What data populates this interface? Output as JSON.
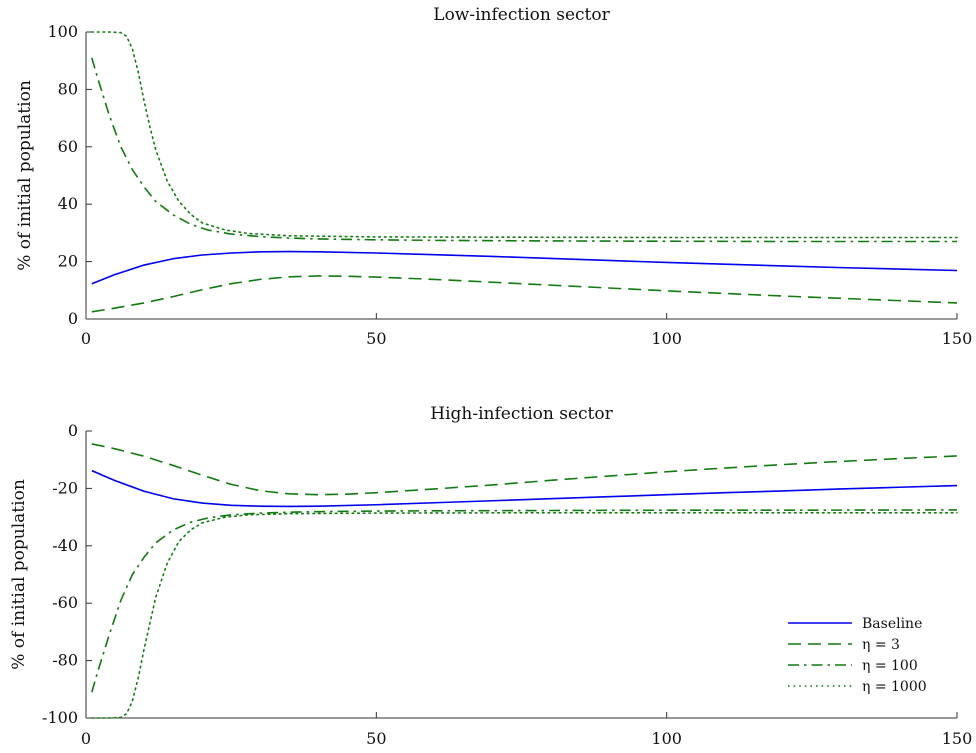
{
  "chart_data": [
    {
      "type": "line",
      "title": "Low-infection sector",
      "xlabel": "",
      "ylabel": "% of initial population",
      "xlim": [
        0,
        150
      ],
      "ylim": [
        0,
        100
      ],
      "xticks": [
        "0",
        "50",
        "100",
        "150"
      ],
      "yticks": [
        "0",
        "20",
        "40",
        "60",
        "80",
        "100"
      ],
      "grid": false,
      "series": [
        {
          "name": "Baseline",
          "color": "#0000ee",
          "dash": "solid",
          "x": [
            1,
            5,
            10,
            15,
            20,
            25,
            30,
            35,
            40,
            50,
            60,
            70,
            80,
            90,
            100,
            110,
            120,
            130,
            140,
            150
          ],
          "y": [
            12.3,
            15.5,
            18.8,
            21.0,
            22.3,
            23.0,
            23.4,
            23.5,
            23.4,
            23.0,
            22.4,
            21.8,
            21.1,
            20.4,
            19.7,
            19.1,
            18.5,
            17.9,
            17.4,
            16.9
          ]
        },
        {
          "name": "η = 3",
          "color": "#117a11",
          "dash": "dash",
          "x": [
            1,
            5,
            10,
            15,
            20,
            25,
            30,
            35,
            40,
            45,
            50,
            60,
            70,
            80,
            90,
            100,
            110,
            120,
            130,
            140,
            150
          ],
          "y": [
            2.5,
            3.8,
            5.6,
            7.8,
            10.2,
            12.3,
            13.8,
            14.7,
            15.0,
            14.9,
            14.6,
            13.8,
            12.8,
            11.8,
            10.8,
            9.8,
            8.9,
            8.0,
            7.2,
            6.4,
            5.6
          ]
        },
        {
          "name": "η = 100",
          "color": "#117a11",
          "dash": "dashdot",
          "x": [
            1,
            2,
            4,
            6,
            8,
            10,
            12,
            15,
            18,
            21,
            25,
            30,
            35,
            40,
            50,
            60,
            80,
            100,
            120,
            150
          ],
          "y": [
            91,
            84,
            71,
            60,
            52,
            46,
            41,
            36.3,
            33.0,
            31.0,
            29.6,
            28.7,
            28.2,
            27.9,
            27.6,
            27.4,
            27.2,
            27.1,
            27.0,
            27.0
          ]
        },
        {
          "name": "η = 1000",
          "color": "#117a11",
          "dash": "dot",
          "x": [
            1,
            4,
            6,
            7,
            8,
            9,
            10,
            11,
            12,
            14,
            16,
            18,
            20,
            24,
            28,
            35,
            50,
            75,
            100,
            150
          ],
          "y": [
            100,
            100,
            99.8,
            98.5,
            94,
            86,
            76,
            67,
            59,
            48,
            41,
            36.5,
            33.5,
            31,
            29.8,
            29.0,
            28.6,
            28.5,
            28.4,
            28.4
          ]
        }
      ]
    },
    {
      "type": "line",
      "title": "High-infection sector",
      "xlabel": "",
      "ylabel": "% of initial population",
      "xlim": [
        0,
        150
      ],
      "ylim": [
        -100,
        0
      ],
      "xticks": [
        "0",
        "50",
        "100",
        "150"
      ],
      "yticks": [
        "-100",
        "-80",
        "-60",
        "-40",
        "-20",
        "0"
      ],
      "grid": false,
      "legend": {
        "location": "bottom-right",
        "entries": [
          "Baseline",
          "η = 3",
          "η = 100",
          "η = 1000"
        ]
      },
      "series": [
        {
          "name": "Baseline",
          "color": "#0000ee",
          "dash": "solid",
          "x": [
            1,
            5,
            10,
            15,
            20,
            25,
            30,
            35,
            40,
            50,
            60,
            70,
            80,
            90,
            100,
            110,
            120,
            130,
            140,
            150
          ],
          "y": [
            -13.8,
            -17.3,
            -21.0,
            -23.6,
            -25.1,
            -25.9,
            -26.2,
            -26.3,
            -26.2,
            -25.7,
            -25.0,
            -24.3,
            -23.6,
            -22.9,
            -22.2,
            -21.5,
            -20.9,
            -20.2,
            -19.6,
            -19.0
          ]
        },
        {
          "name": "η = 3",
          "color": "#117a11",
          "dash": "dash",
          "x": [
            1,
            5,
            10,
            15,
            20,
            25,
            30,
            35,
            40,
            45,
            50,
            60,
            70,
            80,
            90,
            100,
            110,
            120,
            130,
            140,
            150
          ],
          "y": [
            -4.5,
            -6.2,
            -8.8,
            -12.0,
            -15.4,
            -18.6,
            -20.8,
            -21.9,
            -22.2,
            -22.0,
            -21.5,
            -20.2,
            -18.8,
            -17.2,
            -15.7,
            -14.2,
            -12.9,
            -11.7,
            -10.6,
            -9.6,
            -8.7
          ]
        },
        {
          "name": "η = 100",
          "color": "#117a11",
          "dash": "dashdot",
          "x": [
            1,
            2,
            4,
            6,
            8,
            10,
            12,
            15,
            18,
            21,
            25,
            30,
            35,
            40,
            50,
            60,
            80,
            100,
            120,
            150
          ],
          "y": [
            -91,
            -84,
            -71,
            -59,
            -50,
            -44,
            -39,
            -34.5,
            -31.8,
            -30.3,
            -29.2,
            -28.6,
            -28.3,
            -28.1,
            -27.9,
            -27.8,
            -27.7,
            -27.6,
            -27.6,
            -27.5
          ]
        },
        {
          "name": "η = 1000",
          "color": "#117a11",
          "dash": "dot",
          "x": [
            1,
            4,
            6,
            7,
            8,
            9,
            10,
            11,
            12,
            14,
            16,
            18,
            20,
            24,
            28,
            35,
            50,
            75,
            100,
            150
          ],
          "y": [
            -100,
            -100,
            -99.8,
            -98.5,
            -94,
            -86,
            -76,
            -67,
            -58,
            -46,
            -38.5,
            -34.5,
            -32.0,
            -30.0,
            -29.2,
            -28.8,
            -28.6,
            -28.5,
            -28.5,
            -28.5
          ]
        }
      ]
    }
  ]
}
